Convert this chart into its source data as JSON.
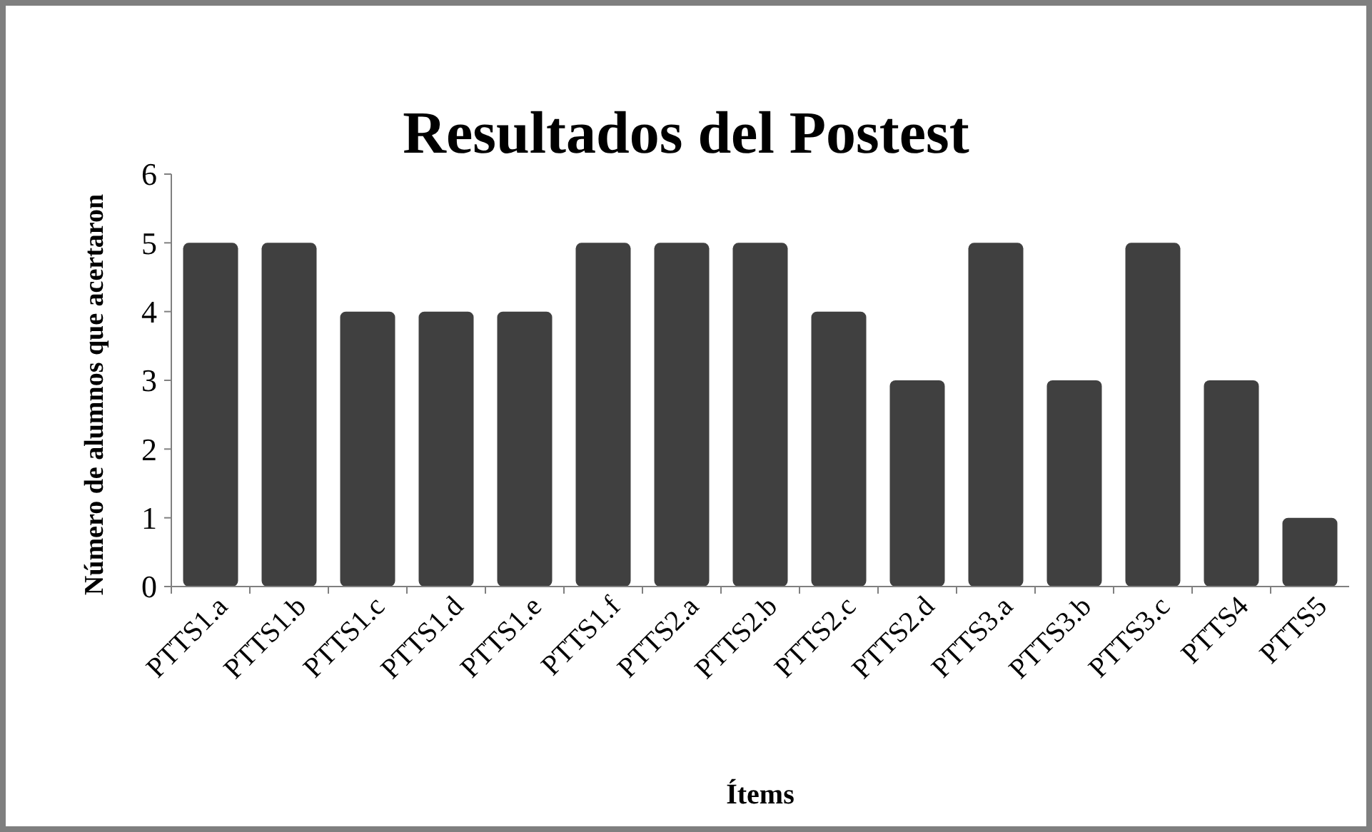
{
  "chart_data": {
    "type": "bar",
    "title": "Resultados del Postest",
    "xlabel": "Ítems",
    "ylabel": "Número de alumnos que acertaron",
    "categories": [
      "PTTS1.a",
      "PTTS1.b",
      "PTTS1.c",
      "PTTS1.d",
      "PTTS1.e",
      "PTTS1.f",
      "PTTS2.a",
      "PTTS2.b",
      "PTTS2.c",
      "PTTS2.d",
      "PTTS3.a",
      "PTTS3.b",
      "PTTS3.c",
      "PTTS4",
      "PTTS5"
    ],
    "values": [
      5,
      5,
      4,
      4,
      4,
      5,
      5,
      5,
      4,
      3,
      5,
      3,
      5,
      3,
      1
    ],
    "color": "#404040",
    "ylim": [
      0,
      6
    ],
    "yticks": [
      0,
      1,
      2,
      3,
      4,
      5,
      6
    ],
    "grid": false
  }
}
